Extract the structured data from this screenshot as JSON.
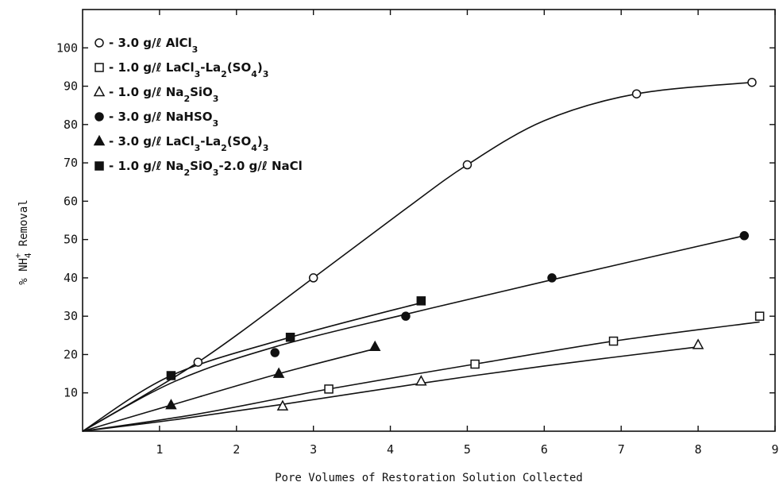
{
  "chart_data": {
    "type": "scatter",
    "title": "",
    "xlabel": "Pore Volumes of Restoration Solution Collected",
    "ylabel": "% NH4+ Removal",
    "xlim": [
      0,
      9
    ],
    "ylim": [
      0,
      110
    ],
    "x_ticks": [
      1,
      2,
      3,
      4,
      5,
      6,
      7,
      8,
      9
    ],
    "y_ticks": [
      10,
      20,
      30,
      40,
      50,
      60,
      70,
      80,
      90,
      100
    ],
    "grid": false,
    "legend_position": "top-left",
    "series": [
      {
        "name": "- 3.0 g/ℓ AlCl3",
        "name_parts": [
          [
            "- 3.0 g/ℓ AlCl",
            ""
          ],
          [
            "3",
            "sub"
          ]
        ],
        "marker": "circle-open",
        "x": [
          1.5,
          3.0,
          5.0,
          7.2,
          8.7
        ],
        "y": [
          18,
          40,
          69.5,
          88,
          91
        ],
        "curve": [
          [
            0,
            0
          ],
          [
            1.5,
            18
          ],
          [
            3.0,
            40
          ],
          [
            4.2,
            58
          ],
          [
            5.0,
            69.5
          ],
          [
            6.0,
            81
          ],
          [
            7.2,
            88
          ],
          [
            8.7,
            91
          ]
        ]
      },
      {
        "name": "- 1.0 g/ℓ LaCl3-La2(SO4)3",
        "name_parts": [
          [
            "- 1.0 g/ℓ LaCl",
            ""
          ],
          [
            "3",
            "sub"
          ],
          [
            "-La",
            ""
          ],
          [
            "2",
            "sub"
          ],
          [
            "(SO",
            ""
          ],
          [
            "4",
            "sub"
          ],
          [
            ")",
            ""
          ],
          [
            "3",
            "sub"
          ]
        ],
        "marker": "square-open",
        "x": [
          3.2,
          5.1,
          6.9,
          8.8
        ],
        "y": [
          11,
          17.5,
          23.5,
          30
        ],
        "curve": [
          [
            0,
            0
          ],
          [
            1.5,
            4.5
          ],
          [
            3.2,
            11
          ],
          [
            5.1,
            17.5
          ],
          [
            6.9,
            23.5
          ],
          [
            8.8,
            28.5
          ]
        ]
      },
      {
        "name": "- 1.0 g/ℓ Na2SiO3",
        "name_parts": [
          [
            "- 1.0 g/ℓ Na",
            ""
          ],
          [
            "2",
            "sub"
          ],
          [
            "SiO",
            ""
          ],
          [
            "3",
            "sub"
          ]
        ],
        "marker": "triangle-open",
        "x": [
          2.6,
          4.4,
          8.0
        ],
        "y": [
          6.5,
          13,
          22.5
        ],
        "curve": [
          [
            0,
            0
          ],
          [
            1.2,
            3
          ],
          [
            2.6,
            7
          ],
          [
            4.4,
            12.5
          ],
          [
            6.0,
            17
          ],
          [
            8.0,
            22
          ]
        ]
      },
      {
        "name": "- 3.0 g/ℓ NaHSO3",
        "name_parts": [
          [
            "- 3.0 g/ℓ NaHSO",
            ""
          ],
          [
            "3",
            "sub"
          ]
        ],
        "marker": "circle-filled",
        "x": [
          2.5,
          4.2,
          6.1,
          8.6
        ],
        "y": [
          20.5,
          30,
          40,
          51
        ],
        "curve": [
          [
            0,
            0
          ],
          [
            1.2,
            13
          ],
          [
            2.5,
            22
          ],
          [
            4.2,
            30.5
          ],
          [
            6.1,
            39.5
          ],
          [
            8.6,
            51
          ]
        ]
      },
      {
        "name": "- 3.0 g/ℓ LaCl3-La2(SO4)3",
        "name_parts": [
          [
            "- 3.0 g/ℓ LaCl",
            ""
          ],
          [
            "3",
            "sub"
          ],
          [
            "-La",
            ""
          ],
          [
            "2",
            "sub"
          ],
          [
            "(SO",
            ""
          ],
          [
            "4",
            "sub"
          ],
          [
            ")",
            ""
          ],
          [
            "3",
            "sub"
          ]
        ],
        "marker": "triangle-filled",
        "x": [
          1.15,
          2.55,
          3.8
        ],
        "y": [
          6.8,
          15,
          22
        ],
        "curve": [
          [
            0,
            0
          ],
          [
            1.15,
            6.8
          ],
          [
            2.55,
            15
          ],
          [
            3.8,
            21.5
          ]
        ]
      },
      {
        "name": "- 1.0 g/ℓ Na2SiO3-2.0 g/ℓ NaCl",
        "name_parts": [
          [
            "- 1.0 g/ℓ Na",
            ""
          ],
          [
            "2",
            "sub"
          ],
          [
            "SiO",
            ""
          ],
          [
            "3",
            "sub"
          ],
          [
            "-2.0 g/ℓ NaCl",
            ""
          ]
        ],
        "marker": "square-filled",
        "x": [
          1.15,
          2.7,
          4.4
        ],
        "y": [
          14.5,
          24.5,
          34
        ],
        "curve": [
          [
            0,
            0
          ],
          [
            1.15,
            14.5
          ],
          [
            2.7,
            24.5
          ],
          [
            4.4,
            33.5
          ]
        ]
      }
    ]
  }
}
